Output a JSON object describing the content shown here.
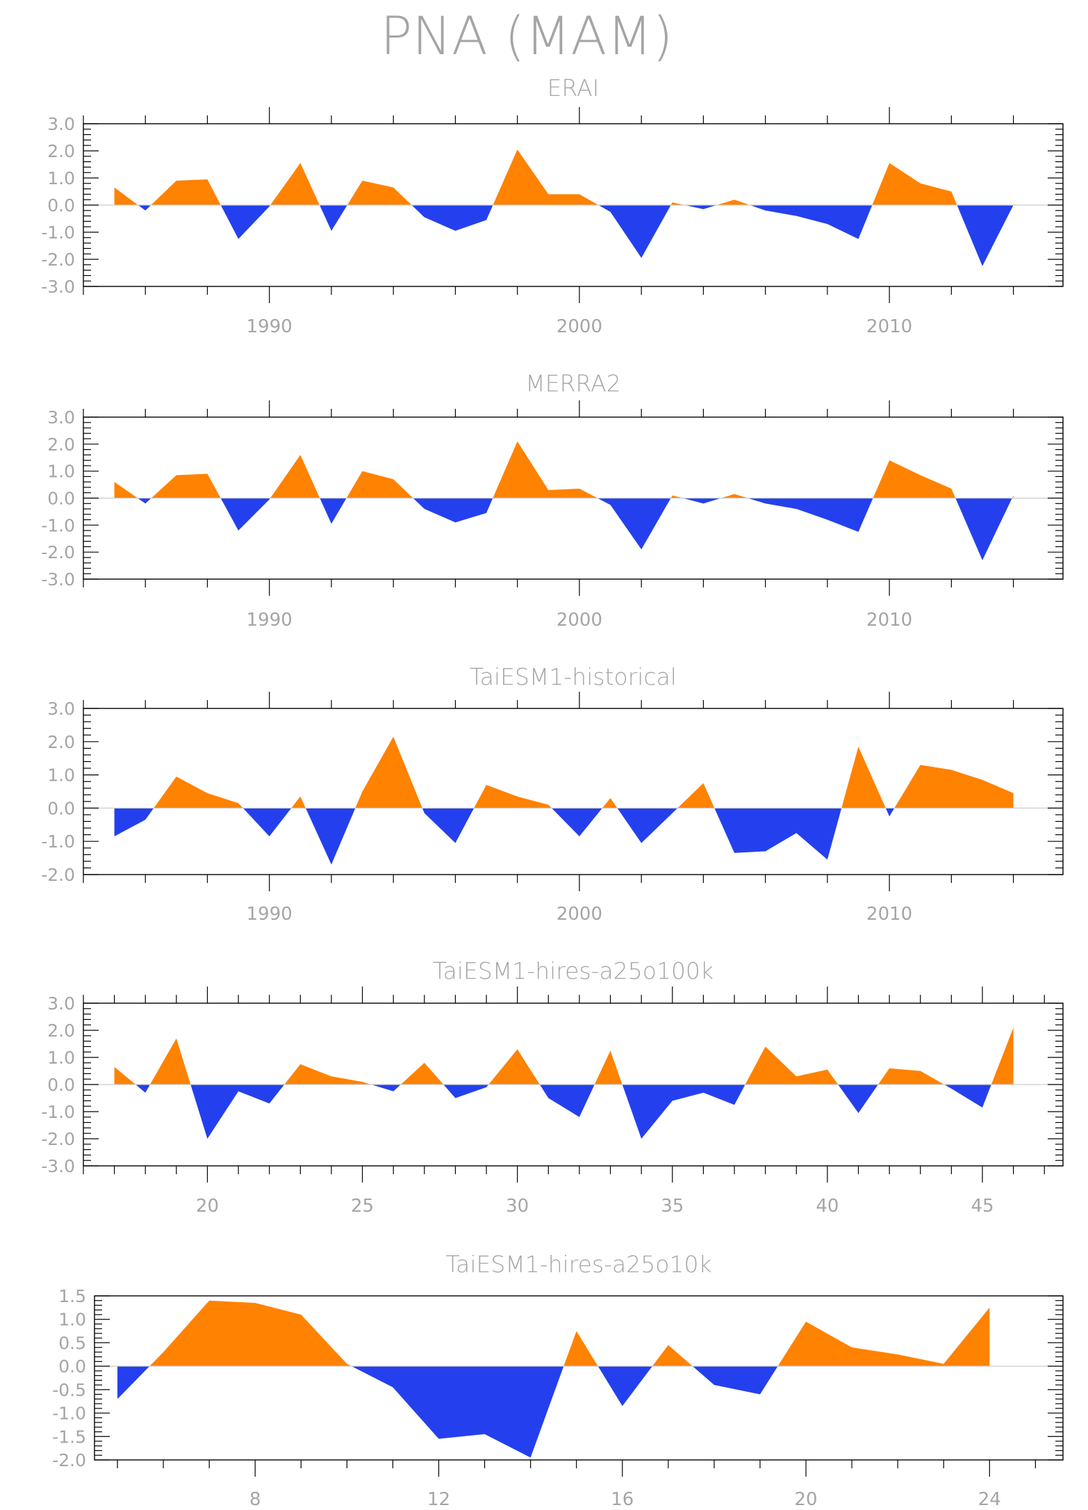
{
  "figure": {
    "title": "PNA (MAM)",
    "colors": {
      "positive": "#ff8200",
      "negative": "#2440ee",
      "frame": "#000000",
      "text": "#a5a5a5",
      "zero_line": "#cccccc"
    }
  },
  "chart_data": [
    {
      "type": "area",
      "title": "ERAI",
      "xlabel": "",
      "ylabel": "",
      "xlim": [
        1984,
        2015.6
      ],
      "ylim": [
        -3.0,
        3.0
      ],
      "ytick_labels": [
        "3.0",
        "2.0",
        "1.0",
        "0.0",
        "-1.0",
        "-2.0",
        "-3.0"
      ],
      "xtick_labels": [
        "1990",
        "2000",
        "2010"
      ],
      "grid": false,
      "x": [
        1985,
        1986,
        1987,
        1988,
        1989,
        1990,
        1991,
        1992,
        1993,
        1994,
        1995,
        1996,
        1997,
        1998,
        1999,
        2000,
        2001,
        2002,
        2003,
        2004,
        2005,
        2006,
        2007,
        2008,
        2009,
        2010,
        2011,
        2012,
        2013,
        2014
      ],
      "values": [
        0.65,
        -0.2,
        0.9,
        0.95,
        -1.25,
        -0.05,
        1.55,
        -0.95,
        0.9,
        0.65,
        -0.45,
        -0.95,
        -0.55,
        2.05,
        0.4,
        0.4,
        -0.25,
        -1.95,
        0.1,
        -0.15,
        0.2,
        -0.2,
        -0.4,
        -0.7,
        -1.25,
        1.55,
        0.8,
        0.5,
        -2.25,
        0.0
      ]
    },
    {
      "type": "area",
      "title": "MERRA2",
      "xlabel": "",
      "ylabel": "",
      "xlim": [
        1984,
        2015.6
      ],
      "ylim": [
        -3.0,
        3.0
      ],
      "ytick_labels": [
        "3.0",
        "2.0",
        "1.0",
        "0.0",
        "-1.0",
        "-2.0",
        "-3.0"
      ],
      "xtick_labels": [
        "1990",
        "2000",
        "2010"
      ],
      "grid": false,
      "x": [
        1985,
        1986,
        1987,
        1988,
        1989,
        1990,
        1991,
        1992,
        1993,
        1994,
        1995,
        1996,
        1997,
        1998,
        1999,
        2000,
        2001,
        2002,
        2003,
        2004,
        2005,
        2006,
        2007,
        2008,
        2009,
        2010,
        2011,
        2012,
        2013,
        2014
      ],
      "values": [
        0.6,
        -0.2,
        0.85,
        0.9,
        -1.2,
        -0.05,
        1.6,
        -0.95,
        1.0,
        0.7,
        -0.4,
        -0.9,
        -0.55,
        2.1,
        0.3,
        0.35,
        -0.25,
        -1.9,
        0.1,
        -0.2,
        0.15,
        -0.2,
        -0.4,
        -0.8,
        -1.25,
        1.4,
        0.85,
        0.35,
        -2.3,
        0.1
      ]
    },
    {
      "type": "area",
      "title": "TaiESM1-historical",
      "xlabel": "",
      "ylabel": "",
      "xlim": [
        1984,
        2015.6
      ],
      "ylim": [
        -2.0,
        3.0
      ],
      "ytick_labels": [
        "3.0",
        "2.0",
        "1.0",
        "0.0",
        "-1.0",
        "-2.0"
      ],
      "xtick_labels": [
        "1990",
        "2000",
        "2010"
      ],
      "grid": false,
      "x": [
        1985,
        1986,
        1987,
        1988,
        1989,
        1990,
        1991,
        1992,
        1993,
        1994,
        1995,
        1996,
        1997,
        1998,
        1999,
        2000,
        2001,
        2002,
        2003,
        2004,
        2005,
        2006,
        2007,
        2008,
        2009,
        2010,
        2011,
        2012,
        2013,
        2014
      ],
      "values": [
        -0.85,
        -0.35,
        0.95,
        0.45,
        0.15,
        -0.85,
        0.35,
        -1.7,
        0.5,
        2.15,
        -0.15,
        -1.05,
        0.7,
        0.35,
        0.1,
        -0.85,
        0.3,
        -1.05,
        -0.15,
        0.75,
        -1.35,
        -1.3,
        -0.75,
        -1.55,
        1.85,
        -0.25,
        1.3,
        1.15,
        0.85,
        0.45
      ]
    },
    {
      "type": "area",
      "title": "TaiESM1-hires-a25o100k",
      "xlabel": "",
      "ylabel": "",
      "xlim": [
        16.0,
        47.6
      ],
      "ylim": [
        -3.0,
        3.0
      ],
      "ytick_labels": [
        "3.0",
        "2.0",
        "1.0",
        "0.0",
        "-1.0",
        "-2.0",
        "-3.0"
      ],
      "xtick_labels": [
        "20",
        "25",
        "30",
        "35",
        "40",
        "45"
      ],
      "grid": false,
      "x": [
        17,
        18,
        19,
        20,
        21,
        22,
        23,
        24,
        25,
        26,
        27,
        28,
        29,
        30,
        31,
        32,
        33,
        34,
        35,
        36,
        37,
        38,
        39,
        40,
        41,
        42,
        43,
        44,
        45,
        46
      ],
      "values": [
        0.65,
        -0.3,
        1.7,
        -2.0,
        -0.25,
        -0.7,
        0.75,
        0.3,
        0.1,
        -0.25,
        0.8,
        -0.5,
        -0.1,
        1.3,
        -0.5,
        -1.2,
        1.25,
        -2.0,
        -0.6,
        -0.3,
        -0.75,
        1.4,
        0.3,
        0.55,
        -1.05,
        0.6,
        0.5,
        -0.15,
        -0.85,
        2.1
      ]
    },
    {
      "type": "area",
      "title": "TaiESM1-hires-a25o10k",
      "xlabel": "",
      "ylabel": "",
      "xlim": [
        4.5,
        25.6
      ],
      "ylim": [
        -2.0,
        1.5
      ],
      "ytick_labels": [
        "1.5",
        "1.0",
        "0.5",
        "0.0",
        "-0.5",
        "-1.0",
        "-1.5",
        "-2.0"
      ],
      "xtick_labels": [
        "8",
        "12",
        "16",
        "20",
        "24"
      ],
      "grid": false,
      "x": [
        5,
        6,
        7,
        8,
        9,
        10,
        11,
        12,
        13,
        14,
        15,
        16,
        17,
        18,
        19,
        20,
        21,
        22,
        23,
        24
      ],
      "values": [
        -0.7,
        0.3,
        1.4,
        1.35,
        1.1,
        0.05,
        -0.45,
        -1.55,
        -1.45,
        -1.95,
        0.75,
        -0.85,
        0.45,
        -0.4,
        -0.6,
        0.95,
        0.4,
        0.25,
        0.05,
        1.25
      ]
    }
  ]
}
